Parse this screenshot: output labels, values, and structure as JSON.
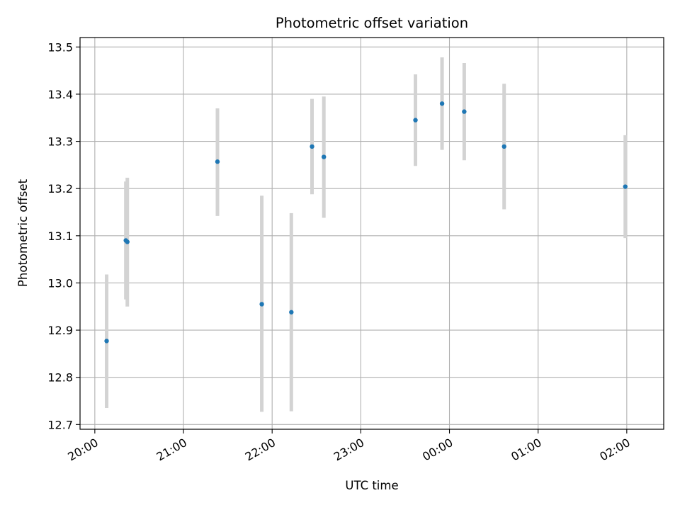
{
  "chart_data": {
    "type": "scatter",
    "title": "Photometric offset variation",
    "xlabel": "UTC time",
    "ylabel": "Photometric offset",
    "x_ticks": [
      "20:00",
      "21:00",
      "22:00",
      "23:00",
      "00:00",
      "01:00",
      "02:00"
    ],
    "y_ticks": [
      "12.7",
      "12.8",
      "12.9",
      "13.0",
      "13.1",
      "13.2",
      "13.3",
      "13.4",
      "13.5"
    ],
    "xlim": [
      "19:50",
      "02:25"
    ],
    "ylim": [
      12.69,
      13.52
    ],
    "grid": true,
    "points": [
      {
        "x": "20:08",
        "y": 12.877,
        "ylow": 12.735,
        "yhigh": 13.018
      },
      {
        "x": "20:21",
        "y": 13.09,
        "ylow": 12.965,
        "yhigh": 13.215
      },
      {
        "x": "20:22",
        "y": 13.087,
        "ylow": 12.95,
        "yhigh": 13.223
      },
      {
        "x": "21:23",
        "y": 13.257,
        "ylow": 13.142,
        "yhigh": 13.37
      },
      {
        "x": "21:53",
        "y": 12.955,
        "ylow": 12.727,
        "yhigh": 13.185
      },
      {
        "x": "22:13",
        "y": 12.938,
        "ylow": 12.728,
        "yhigh": 13.148
      },
      {
        "x": "22:27",
        "y": 13.289,
        "ylow": 13.188,
        "yhigh": 13.39
      },
      {
        "x": "22:35",
        "y": 13.267,
        "ylow": 13.138,
        "yhigh": 13.395
      },
      {
        "x": "23:37",
        "y": 13.345,
        "ylow": 13.248,
        "yhigh": 13.442
      },
      {
        "x": "23:55",
        "y": 13.38,
        "ylow": 13.282,
        "yhigh": 13.478
      },
      {
        "x": "00:10",
        "y": 13.363,
        "ylow": 13.26,
        "yhigh": 13.466
      },
      {
        "x": "00:37",
        "y": 13.289,
        "ylow": 13.156,
        "yhigh": 13.422
      },
      {
        "x": "01:59",
        "y": 13.204,
        "ylow": 13.095,
        "yhigh": 13.313
      }
    ],
    "colors": {
      "marker": "#1f77b4",
      "errorbar": "#d3d3d3",
      "grid": "#b0b0b0",
      "axis": "#000000"
    }
  }
}
